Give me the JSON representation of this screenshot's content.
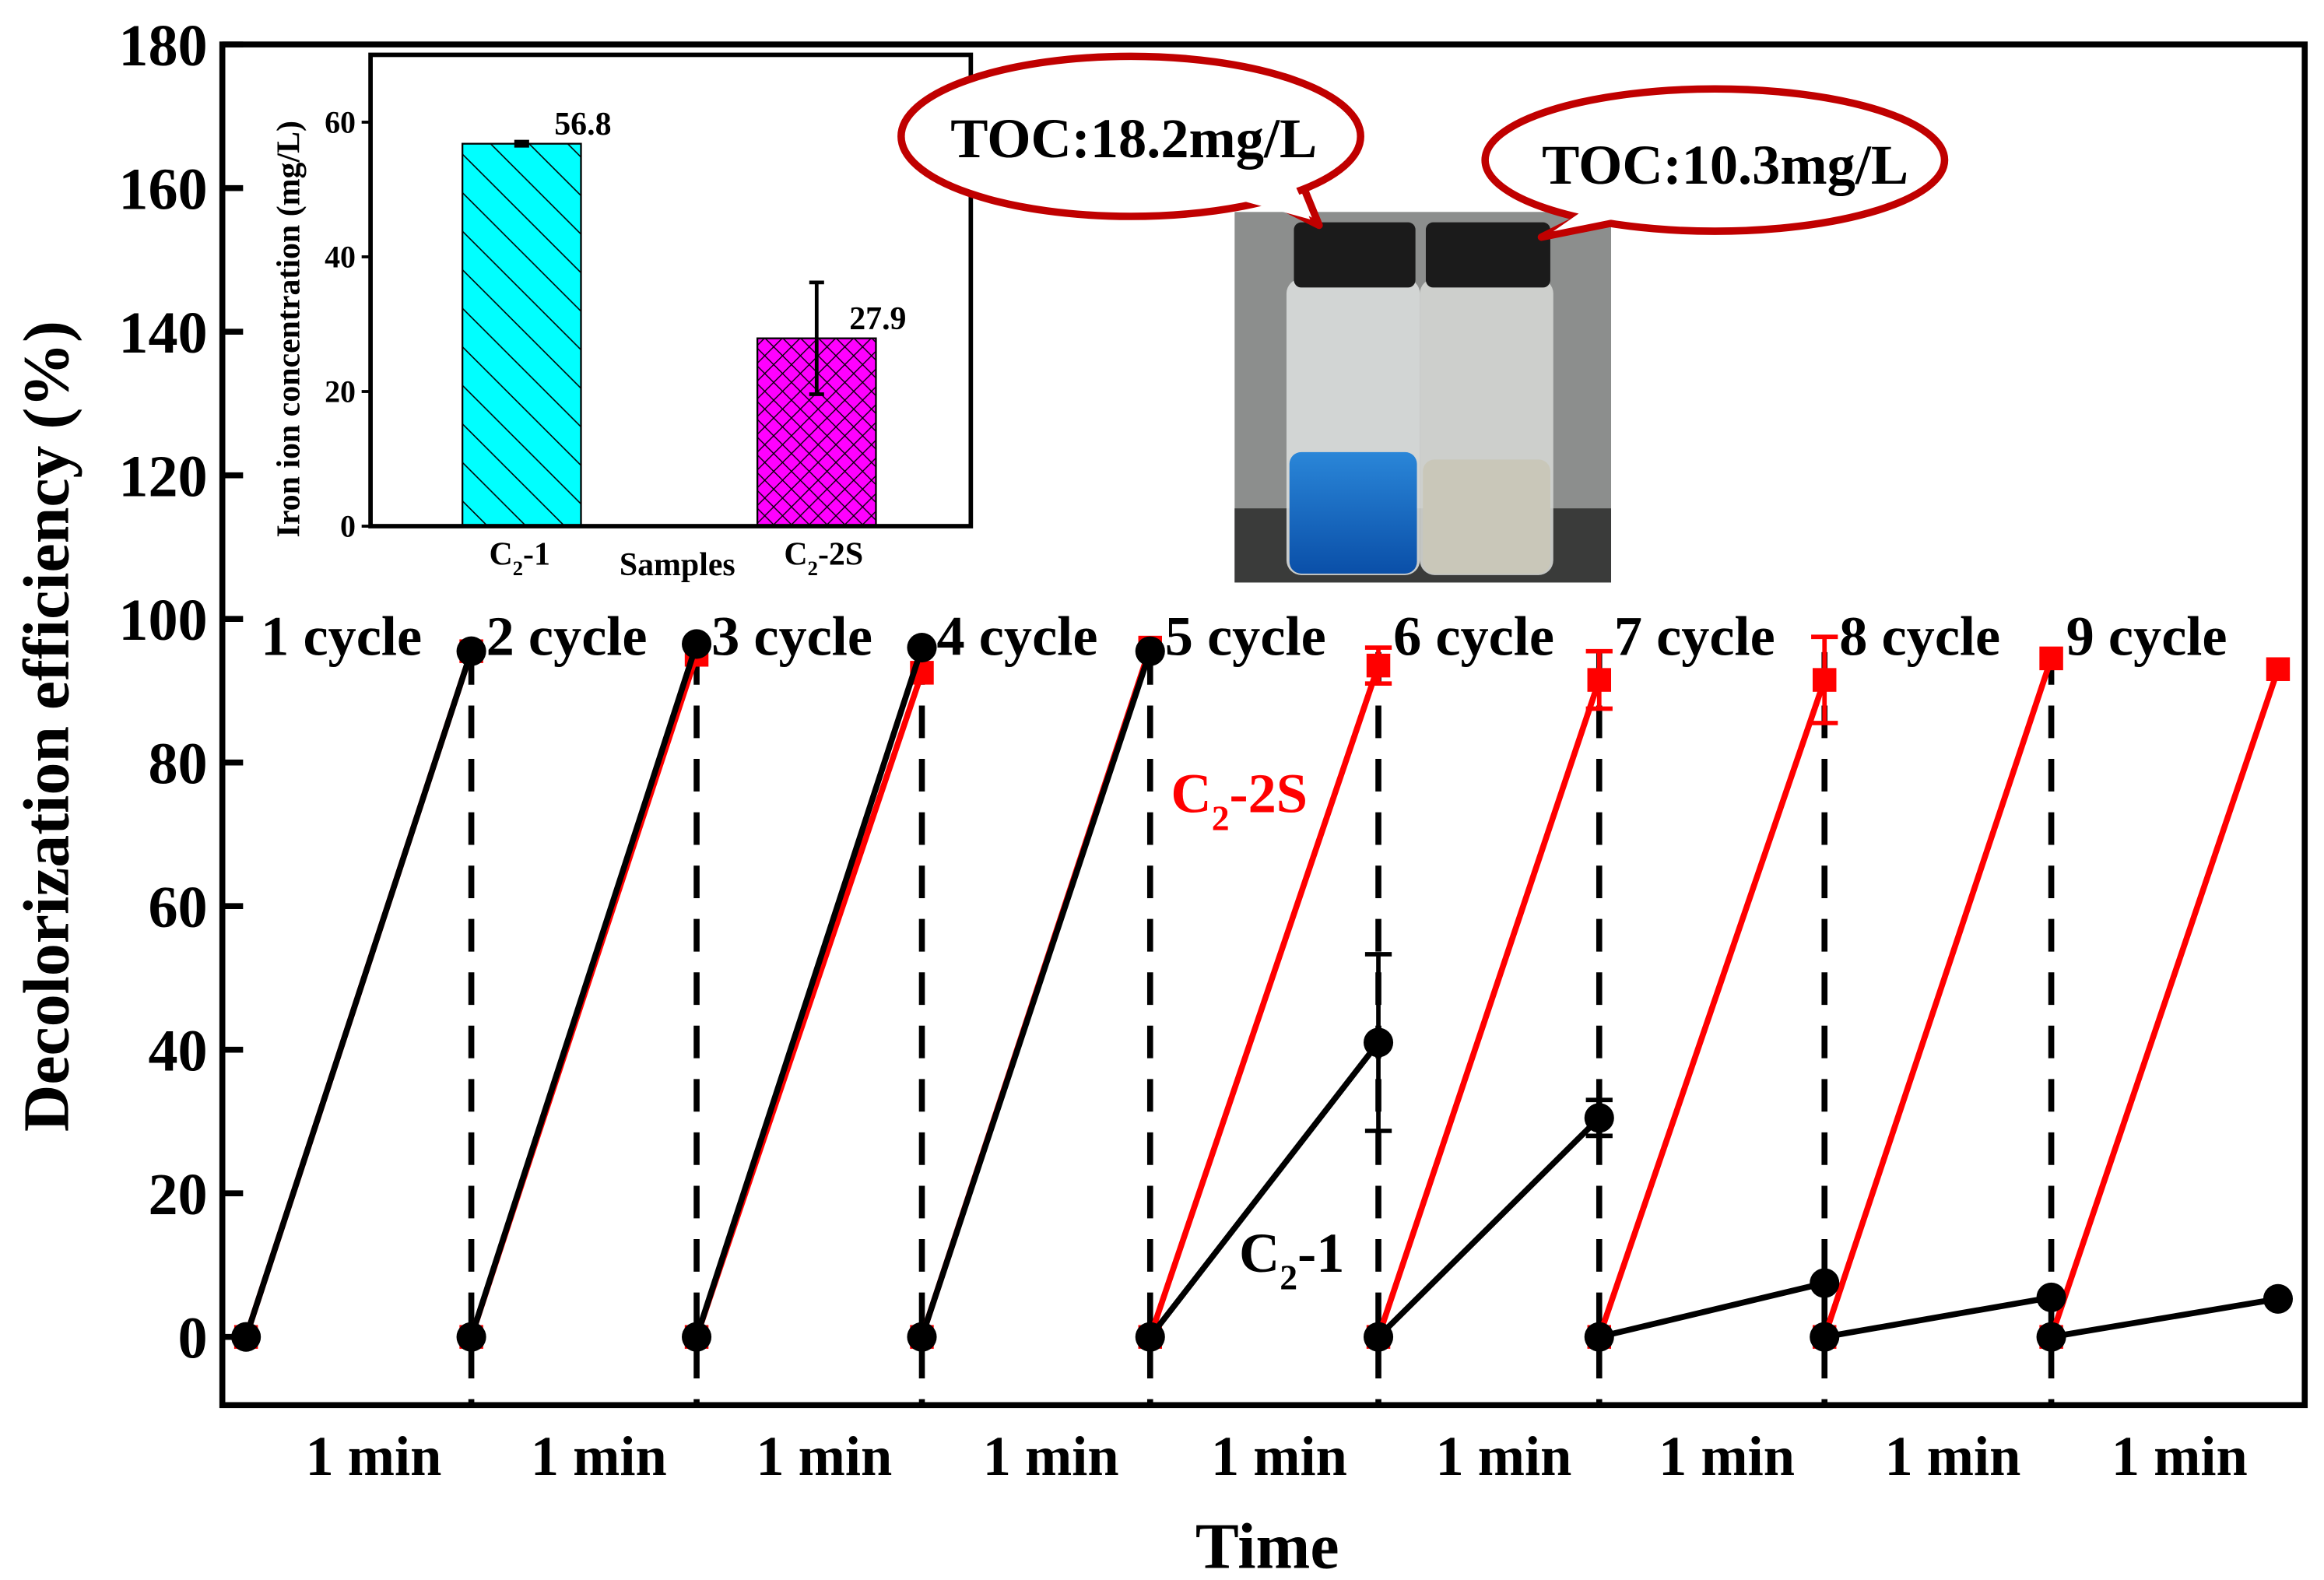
{
  "chart_data": [
    {
      "type": "line",
      "title": "",
      "xlabel": "Time",
      "ylabel": "Decolorization efficiency (%)",
      "ylim": [
        -10,
        180
      ],
      "yticks": [
        0,
        20,
        40,
        60,
        80,
        100,
        120,
        140,
        160,
        180
      ],
      "cycle_labels": [
        "1 cycle",
        "2 cycle",
        "3 cycle",
        "4 cycle",
        "5 cycle",
        "6 cycle",
        "7 cycle",
        "8 cycle",
        "9 cycle"
      ],
      "interval_label": "1 min",
      "series": [
        {
          "name": "C2-1",
          "label_main": "C",
          "label_sub": "2",
          "label_rest": "-1",
          "color": "#000000",
          "marker": "circle",
          "start": [
            0,
            0,
            0,
            0,
            0,
            0,
            0,
            0,
            0
          ],
          "end": [
            95.5,
            96.5,
            96,
            95.5,
            41,
            30.5,
            7.5,
            5.5,
            5.3
          ],
          "end_err": [
            0.5,
            0.5,
            0.5,
            0.5,
            12.3,
            2.5,
            0.5,
            0.5,
            0.5
          ]
        },
        {
          "name": "C2-2S",
          "label_main": "C",
          "label_sub": "2",
          "label_rest": "-2S",
          "color": "#ff0000",
          "marker": "square",
          "start": [
            0,
            0,
            0,
            0,
            0,
            0,
            0,
            0,
            0
          ],
          "end": [
            95.5,
            95,
            92.5,
            96,
            93.5,
            91.5,
            91.5,
            94.5,
            93
          ],
          "end_err": [
            0.5,
            0.5,
            1,
            0.5,
            2.5,
            4,
            6,
            0.5,
            0.5
          ]
        }
      ]
    },
    {
      "type": "bar",
      "title": "",
      "xlabel": "Samples",
      "ylabel": "Iron ion concentration (mg/L)",
      "ylim": [
        0,
        70
      ],
      "yticks": [
        0,
        20,
        40,
        60
      ],
      "categories": [
        {
          "main": "C",
          "sub": "2",
          "rest": "-1"
        },
        {
          "main": "C",
          "sub": "2",
          "rest": "-2S"
        }
      ],
      "values": [
        56.8,
        27.9
      ],
      "value_labels": [
        "56.8",
        "27.9"
      ],
      "errors": [
        0.3,
        8.3
      ],
      "colors": [
        "#00ffff",
        "#ff00ff"
      ],
      "patterns": [
        "diagonal",
        "crosshatch"
      ]
    }
  ],
  "annotations": {
    "toc_left": "TOC:18.2mg/L",
    "toc_right": "TOC:10.3mg/L",
    "callout_color": "#c00000"
  }
}
